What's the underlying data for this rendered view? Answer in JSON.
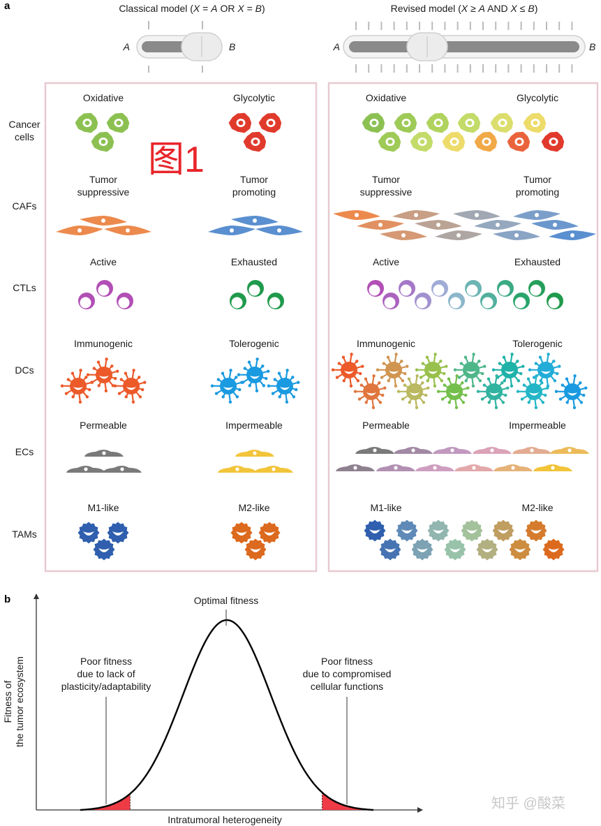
{
  "panel_a": {
    "letter": "a",
    "classical": {
      "title_prefix": "Classical model (",
      "title_vars": [
        "X",
        "A",
        "X",
        "B"
      ],
      "title_ops": [
        " = ",
        " OR ",
        " = "
      ],
      "title_suffix": ")",
      "slider_left": "A",
      "slider_right": "B"
    },
    "revised": {
      "title_prefix": "Revised model (",
      "title_vars": [
        "X",
        "A",
        "X",
        "B"
      ],
      "title_ops": [
        " ≥ ",
        " AND ",
        " ≤ "
      ],
      "title_suffix": ")",
      "slider_left": "A",
      "slider_right": "B"
    },
    "watermark": "图1",
    "rows": [
      {
        "label": [
          "Cancer",
          "cells"
        ],
        "left": [
          "Oxidative"
        ],
        "right": [
          "Glycolytic"
        ]
      },
      {
        "label": [
          "CAFs"
        ],
        "left": [
          "Tumor",
          "suppressive"
        ],
        "right": [
          "Tumor",
          "promoting"
        ]
      },
      {
        "label": [
          "CTLs"
        ],
        "left": [
          "Active"
        ],
        "right": [
          "Exhausted"
        ]
      },
      {
        "label": [
          "DCs"
        ],
        "left": [
          "Immunogenic"
        ],
        "right": [
          "Tolerogenic"
        ]
      },
      {
        "label": [
          "ECs"
        ],
        "left": [
          "Permeable"
        ],
        "right": [
          "Impermeable"
        ]
      },
      {
        "label": [
          "TAMs"
        ],
        "left": [
          "M1-like"
        ],
        "right": [
          "M2-like"
        ]
      }
    ],
    "colors": {
      "frame": "#e8c9d0",
      "cancer": [
        "#8cc152",
        "#a8cf5a",
        "#c6dc6a",
        "#ece070",
        "#f3c24f",
        "#ee8a3d",
        "#e8563a",
        "#e03a2c"
      ],
      "caf": [
        "#ec8a4d",
        "#d39a78",
        "#b5a59a",
        "#9aa9bc",
        "#7fa1c9",
        "#5a8fd0"
      ],
      "ctl": [
        "#b14fb5",
        "#a37cc9",
        "#9fb7d8",
        "#5ab3a7",
        "#2aa56e",
        "#1f9a4c"
      ],
      "dc": [
        "#ec5a2a",
        "#d9864a",
        "#b7bd62",
        "#7fc23a",
        "#44b39c",
        "#1db2a5",
        "#26b7d4",
        "#1a9ae0"
      ],
      "ec": [
        "#7a7a7a",
        "#a68aa8",
        "#c79bc4",
        "#e2a6b4",
        "#e4b07e",
        "#f2c43a"
      ],
      "tam": [
        "#2f5fae",
        "#5a86b8",
        "#8fb2b0",
        "#9ccaa8",
        "#b7a978",
        "#cf8a3a",
        "#dc6a1e"
      ]
    }
  },
  "panel_b": {
    "letter": "b",
    "peak_label": "Optimal fitness",
    "left_annotation": [
      "Poor fitness",
      "due to lack of",
      "plasticity/adaptability"
    ],
    "right_annotation": [
      "Poor fitness",
      "due to compromised",
      "cellular functions"
    ],
    "ylabel": [
      "Fitness of",
      "the tumor ecosystem"
    ],
    "xlabel": "Intratumoral heterogeneity",
    "fill_color": "#ee3b46",
    "watermark": "知乎 @酸菜"
  },
  "chart_data": {
    "type": "line",
    "title": "",
    "xlabel": "Intratumoral heterogeneity",
    "ylabel": "Fitness of the tumor ecosystem",
    "series": [
      {
        "name": "fitness",
        "shape": "bell",
        "peak_x": 0.5,
        "peak_y": 1.0,
        "sd": 0.15
      }
    ],
    "shaded_regions": [
      "low heterogeneity tail",
      "high heterogeneity tail"
    ],
    "annotations": [
      "Optimal fitness",
      "Poor fitness due to lack of plasticity/adaptability",
      "Poor fitness due to compromised cellular functions"
    ]
  }
}
